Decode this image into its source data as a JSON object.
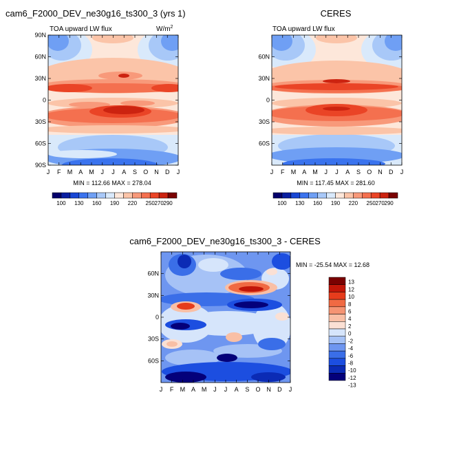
{
  "chart_data": [
    {
      "type": "heatmap",
      "title": "cam6_F2000_DEV_ne30g16_ts300_3 (yrs 1)",
      "subtitle": "TOA upward LW flux",
      "units": "W/m2",
      "x_ticks": [
        "J",
        "F",
        "M",
        "A",
        "M",
        "J",
        "J",
        "A",
        "S",
        "O",
        "N",
        "D",
        "J"
      ],
      "y_ticks": [
        "90N",
        "60N",
        "30N",
        "0",
        "30S",
        "60S",
        "90S"
      ],
      "stats": "MIN = 112.66  MAX = 278.04",
      "colorbar_labels": [
        "100",
        "130",
        "160",
        "190",
        "220",
        "250",
        "270",
        "290"
      ]
    },
    {
      "type": "heatmap",
      "title": "CERES",
      "subtitle": "TOA upward LW flux",
      "x_ticks": [
        "J",
        "F",
        "M",
        "A",
        "M",
        "J",
        "J",
        "A",
        "S",
        "O",
        "N",
        "D",
        "J"
      ],
      "y_ticks": [
        "60N",
        "30N",
        "0",
        "30S",
        "60S"
      ],
      "stats": "MIN = 117.45  MAX = 281.60",
      "colorbar_labels": [
        "100",
        "130",
        "160",
        "190",
        "220",
        "250",
        "270",
        "290"
      ]
    },
    {
      "type": "heatmap",
      "title": "cam6_F2000_DEV_ne30g16_ts300_3 - CERES",
      "x_ticks": [
        "J",
        "F",
        "M",
        "A",
        "M",
        "J",
        "J",
        "A",
        "S",
        "O",
        "N",
        "D",
        "J"
      ],
      "y_ticks": [
        "60N",
        "30N",
        "0",
        "30S",
        "60S"
      ],
      "stats": "MIN = -25.54  MAX =  12.68",
      "colorbar_labels": [
        "13",
        "12",
        "10",
        "8",
        "6",
        "4",
        "2",
        "0",
        "-2",
        "-4",
        "-6",
        "-8",
        "-10",
        "-12",
        "-13"
      ]
    }
  ],
  "colors": {
    "abs_scale": [
      "#05006b",
      "#0a1fa0",
      "#1846d4",
      "#3a73ee",
      "#6f9ff4",
      "#a8c8f8",
      "#d9e9fb",
      "#fde7da",
      "#fbc4a8",
      "#f8997a",
      "#f4704f",
      "#ea4426",
      "#cc2310",
      "#7a0202"
    ],
    "diff_scale": [
      "#04007a",
      "#0b2bb5",
      "#1c4ee0",
      "#3a6ee8",
      "#6e96f0",
      "#a6c2f6",
      "#d6e5fb",
      "#fbe0d4",
      "#f9bfa5",
      "#f59473",
      "#f06a43",
      "#e63c1c",
      "#c21608",
      "#7a0101"
    ]
  }
}
